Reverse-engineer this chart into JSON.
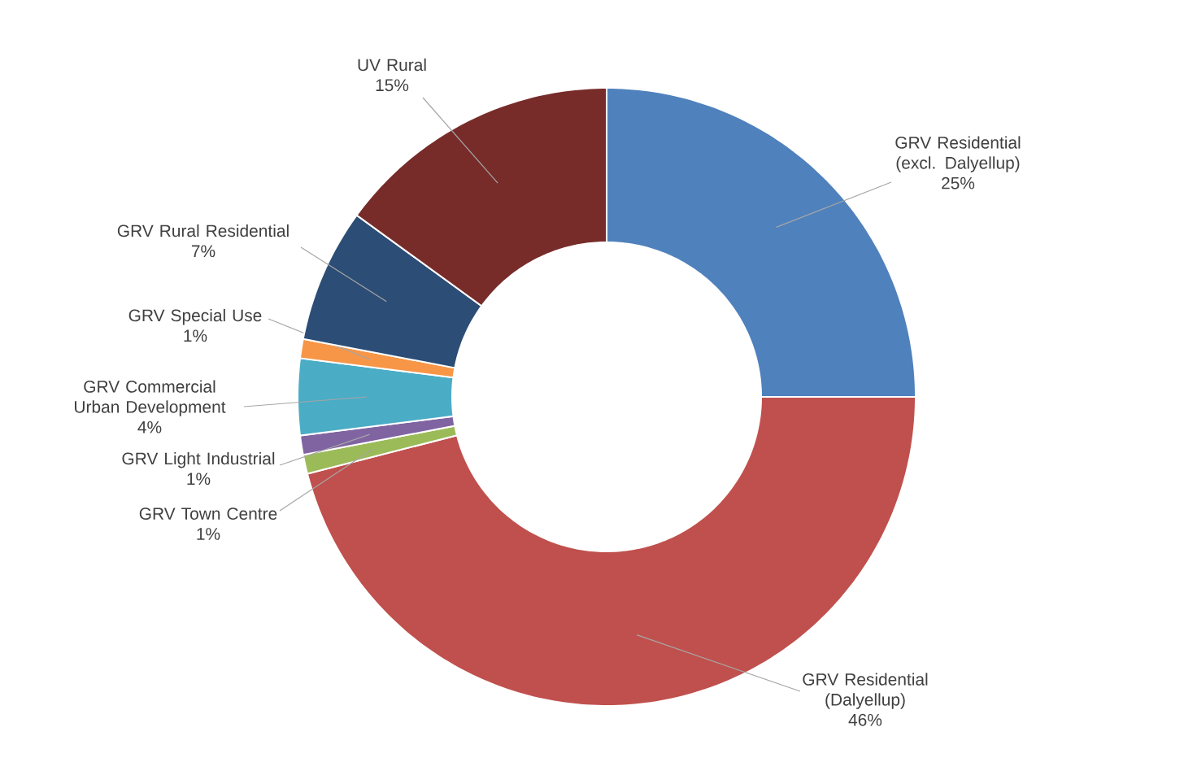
{
  "chart_data": {
    "type": "donut",
    "categories": [
      "GRV Residential (excl. Dalyellup)",
      "GRV Residential (Dalyellup)",
      "GRV Town Centre",
      "GRV Light Industrial",
      "GRV Commercial Urban Development",
      "GRV Special Use",
      "GRV Rural Residential",
      "UV Rural"
    ],
    "values": [
      25,
      46,
      1,
      1,
      4,
      1,
      7,
      15
    ],
    "value_labels": [
      "25%",
      "46%",
      "1%",
      "1%",
      "4%",
      "1%",
      "7%",
      "15%"
    ],
    "colors": [
      "#4f81bd",
      "#c0504d",
      "#9bbb59",
      "#8064a2",
      "#4bacc6",
      "#f79646",
      "#2c4d75",
      "#772c2a"
    ]
  }
}
